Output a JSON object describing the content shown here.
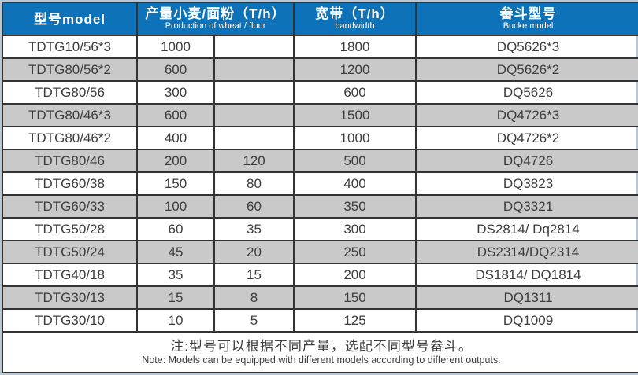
{
  "colors": {
    "header_bg": "#0e72b8",
    "header_text": "#ffffff",
    "row_alt_bg": "#c9c9c9",
    "row_bg": "#ffffff",
    "border": "#333333",
    "outer_border": "#b7c7d8",
    "body_text": "#3c3c3c"
  },
  "table": {
    "headers": {
      "model_zh": "型号model",
      "production_zh": "产量小麦/面粉（T/h）",
      "production_en": "Production of wheat / flour",
      "bandwidth_zh": "宽带（T/h）",
      "bandwidth_en": "bandwidth",
      "bucket_zh": "畚斗型号",
      "bucket_en": "Bucke model"
    },
    "rows": [
      {
        "model": "TDTG10/56*3",
        "wheat": "1000",
        "flour": "",
        "bandwidth": "1800",
        "bucket": "DQ5626*3"
      },
      {
        "model": "TDTG80/56*2",
        "wheat": "600",
        "flour": "",
        "bandwidth": "1200",
        "bucket": "DQ5626*2"
      },
      {
        "model": "TDTG80/56",
        "wheat": "300",
        "flour": "",
        "bandwidth": "600",
        "bucket": "DQ5626"
      },
      {
        "model": "TDTG80/46*3",
        "wheat": "600",
        "flour": "",
        "bandwidth": "1500",
        "bucket": "DQ4726*3"
      },
      {
        "model": "TDTG80/46*2",
        "wheat": "400",
        "flour": "",
        "bandwidth": "1000",
        "bucket": "DQ4726*2"
      },
      {
        "model": "TDTG80/46",
        "wheat": "200",
        "flour": "120",
        "bandwidth": "500",
        "bucket": "DQ4726"
      },
      {
        "model": "TDTG60/38",
        "wheat": "150",
        "flour": "80",
        "bandwidth": "400",
        "bucket": "DQ3823"
      },
      {
        "model": "TDTG60/33",
        "wheat": "100",
        "flour": "60",
        "bandwidth": "350",
        "bucket": "DQ3321"
      },
      {
        "model": "TDTG50/28",
        "wheat": "60",
        "flour": "35",
        "bandwidth": "300",
        "bucket": "DS2814/ Dq2814"
      },
      {
        "model": "TDTG50/24",
        "wheat": "45",
        "flour": "20",
        "bandwidth": "250",
        "bucket": "DS2314/DQ2314"
      },
      {
        "model": "TDTG40/18",
        "wheat": "35",
        "flour": "15",
        "bandwidth": "200",
        "bucket": "DS1814/ DQ1814"
      },
      {
        "model": "TDTG30/13",
        "wheat": "15",
        "flour": "8",
        "bandwidth": "150",
        "bucket": "DQ1311"
      },
      {
        "model": "TDTG30/10",
        "wheat": "10",
        "flour": "5",
        "bandwidth": "125",
        "bucket": "DQ1009"
      }
    ],
    "note_zh": "注:型号可以根据不同产量，选配不同型号畚斗。",
    "note_en": "Note: Models can be equipped with different models according to different outputs."
  }
}
